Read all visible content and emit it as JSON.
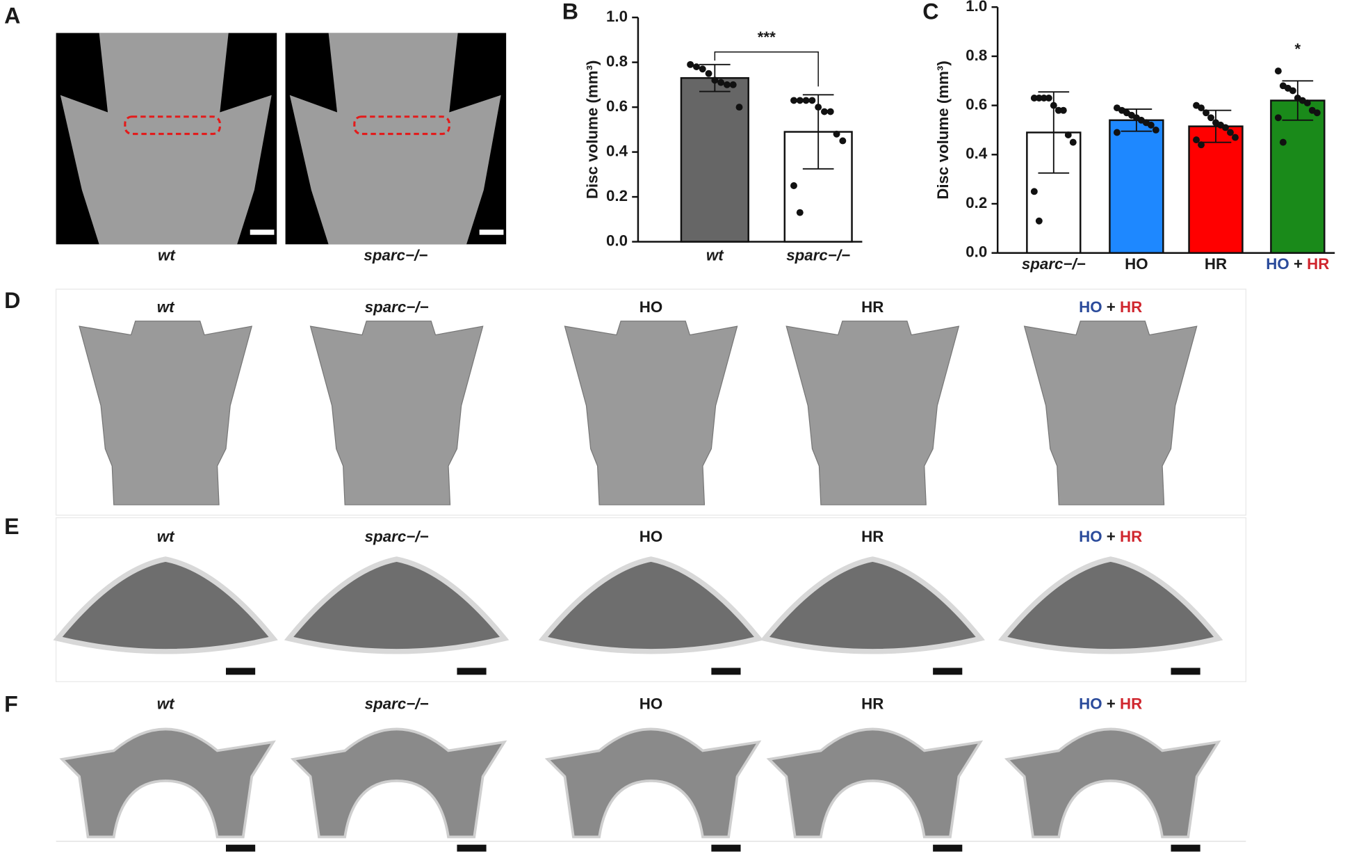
{
  "panels": {
    "letters": [
      "A",
      "B",
      "C",
      "D",
      "E",
      "F"
    ],
    "A": {
      "captions": [
        "wt",
        "sparc−/−"
      ]
    },
    "D": {
      "captions": [
        "wt",
        "sparc−/−",
        "HO",
        "HR",
        "HO + HR"
      ]
    },
    "E": {
      "captions": [
        "wt",
        "sparc−/−",
        "HO",
        "HR",
        "HO + HR"
      ]
    },
    "F": {
      "captions": [
        "wt",
        "sparc−/−",
        "HO",
        "HR",
        "HO + HR"
      ]
    },
    "label_colors": [
      "#1a1a1a",
      "#1a1a1a",
      "#2b4b9b",
      "#d0272f",
      [
        "#2b4b9b",
        "#1a1a1a",
        "#d0272f"
      ]
    ],
    "label_italic": [
      true,
      true,
      false,
      false,
      false
    ]
  },
  "chart_data": [
    {
      "type": "bar",
      "y_label": "Disc volume (mm³)",
      "categories": [
        "wt",
        "sparc−/−"
      ],
      "label_colors": [
        "#1a1a1a",
        "#1a1a1a"
      ],
      "label_italic": [
        true,
        true
      ],
      "values": [
        0.73,
        0.49
      ],
      "errors": [
        0.06,
        0.165
      ],
      "colors": [
        "#666666",
        "#ffffff"
      ],
      "points": [
        [
          0.79,
          0.78,
          0.77,
          0.75,
          0.72,
          0.71,
          0.7,
          0.7,
          0.6
        ],
        [
          0.63,
          0.63,
          0.63,
          0.63,
          0.6,
          0.58,
          0.58,
          0.48,
          0.45,
          0.25,
          0.13
        ]
      ],
      "annotation": "***",
      "ylim": [
        0,
        1.0
      ],
      "yticks": [
        {
          "value": 0,
          "label": "0.0"
        },
        0.2,
        0.4,
        0.6,
        0.8,
        {
          "value": 1.0,
          "label": "1.0"
        }
      ]
    },
    {
      "type": "bar",
      "y_label": "Disc volume (mm³)",
      "categories": [
        "sparc−/−",
        "HO",
        "HR",
        "HO + HR"
      ],
      "label_colors": [
        "#1a1a1a",
        "#2b4b9b",
        "#d0272f",
        [
          "#2b4b9b",
          "#1a1a1a",
          "#d0272f"
        ]
      ],
      "label_italic": [
        true,
        false,
        false,
        false
      ],
      "values": [
        0.49,
        0.54,
        0.515,
        0.62
      ],
      "errors": [
        0.165,
        0.045,
        0.065,
        0.08
      ],
      "colors": [
        "#ffffff",
        "#1e88ff",
        "#ff0000",
        "#1a8a1a"
      ],
      "points": [
        [
          0.63,
          0.63,
          0.63,
          0.63,
          0.6,
          0.58,
          0.58,
          0.48,
          0.45,
          0.25,
          0.13
        ],
        [
          0.59,
          0.58,
          0.57,
          0.56,
          0.55,
          0.54,
          0.53,
          0.52,
          0.5,
          0.49
        ],
        [
          0.6,
          0.59,
          0.57,
          0.55,
          0.53,
          0.52,
          0.51,
          0.49,
          0.47,
          0.46,
          0.44
        ],
        [
          0.74,
          0.68,
          0.67,
          0.66,
          0.63,
          0.62,
          0.61,
          0.58,
          0.57,
          0.55,
          0.45
        ]
      ],
      "annotation": "*",
      "ylim": [
        0,
        1.0
      ],
      "yticks": [
        {
          "value": 0,
          "label": "0.0"
        },
        0.2,
        0.4,
        0.6,
        0.8,
        {
          "value": 1.0,
          "label": "1.0"
        }
      ]
    }
  ]
}
